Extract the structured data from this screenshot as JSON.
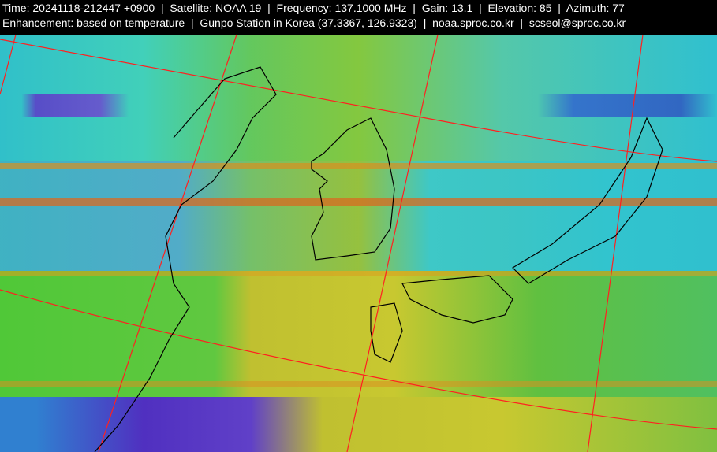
{
  "header": {
    "time": "Time: 20241118-212447 +0900",
    "satellite": "Satellite: NOAA 19",
    "frequency": "Frequency: 137.1000 MHz",
    "gain": "Gain: 13.1",
    "elevation": "Elevation: 85",
    "azimuth": "Azimuth: 77",
    "enhancement": "Enhancement: based on temperature",
    "station": "Gunpo Station in Korea (37.3367, 126.9323)",
    "website": "noaa.sproc.co.kr",
    "email": "scseol@sproc.co.kr",
    "separator": "|"
  },
  "colors": {
    "grid_line": "#ff2020",
    "coastline": "#000000",
    "cold_cloud": "#5a20c8",
    "cyan_cloud": "#20c8d8",
    "warm_land": "#c8c830",
    "noise_band": "#e07020"
  }
}
